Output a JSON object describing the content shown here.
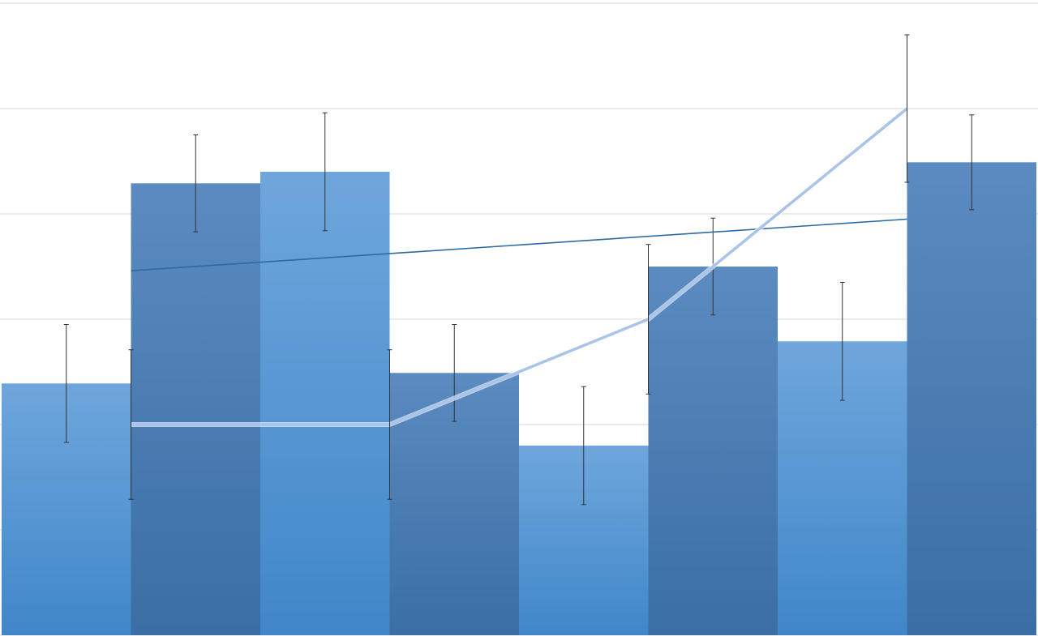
{
  "chart_data": {
    "type": "bar",
    "title": "",
    "xlabel": "",
    "ylabel": "",
    "ylim": [
      0,
      6
    ],
    "grid": true,
    "legend": "none",
    "bar_series": {
      "x": [
        1,
        2,
        3,
        4,
        5,
        6,
        7,
        8
      ],
      "values": [
        2.39,
        4.29,
        4.4,
        2.49,
        1.8,
        3.5,
        2.79,
        4.49
      ],
      "error": [
        0.56,
        0.46,
        0.56,
        0.46,
        0.56,
        0.46,
        0.56,
        0.45
      ],
      "styles": [
        "light",
        "dark",
        "light",
        "dark",
        "light",
        "dark",
        "light",
        "dark"
      ]
    },
    "line_series": {
      "type": "line",
      "x": [
        1.5,
        3.5,
        5.5,
        7.5
      ],
      "values": [
        2,
        2,
        3,
        5
      ],
      "error": [
        0.71,
        0.71,
        0.71,
        0.7
      ]
    },
    "trendline": {
      "type": "linear",
      "x": [
        1.5,
        7.5
      ],
      "values": [
        3.46,
        3.95
      ]
    },
    "colors": {
      "bar_light_top": "#6fa6dc",
      "bar_light_bottom": "#3f87c9",
      "bar_dark_top": "#5b8bc0",
      "bar_dark_bottom": "#3a6ea5",
      "line": "#a9c4e8",
      "trendline": "#2e6aa3",
      "error_bar": "#333333",
      "grid": "#d9d9d9"
    }
  }
}
